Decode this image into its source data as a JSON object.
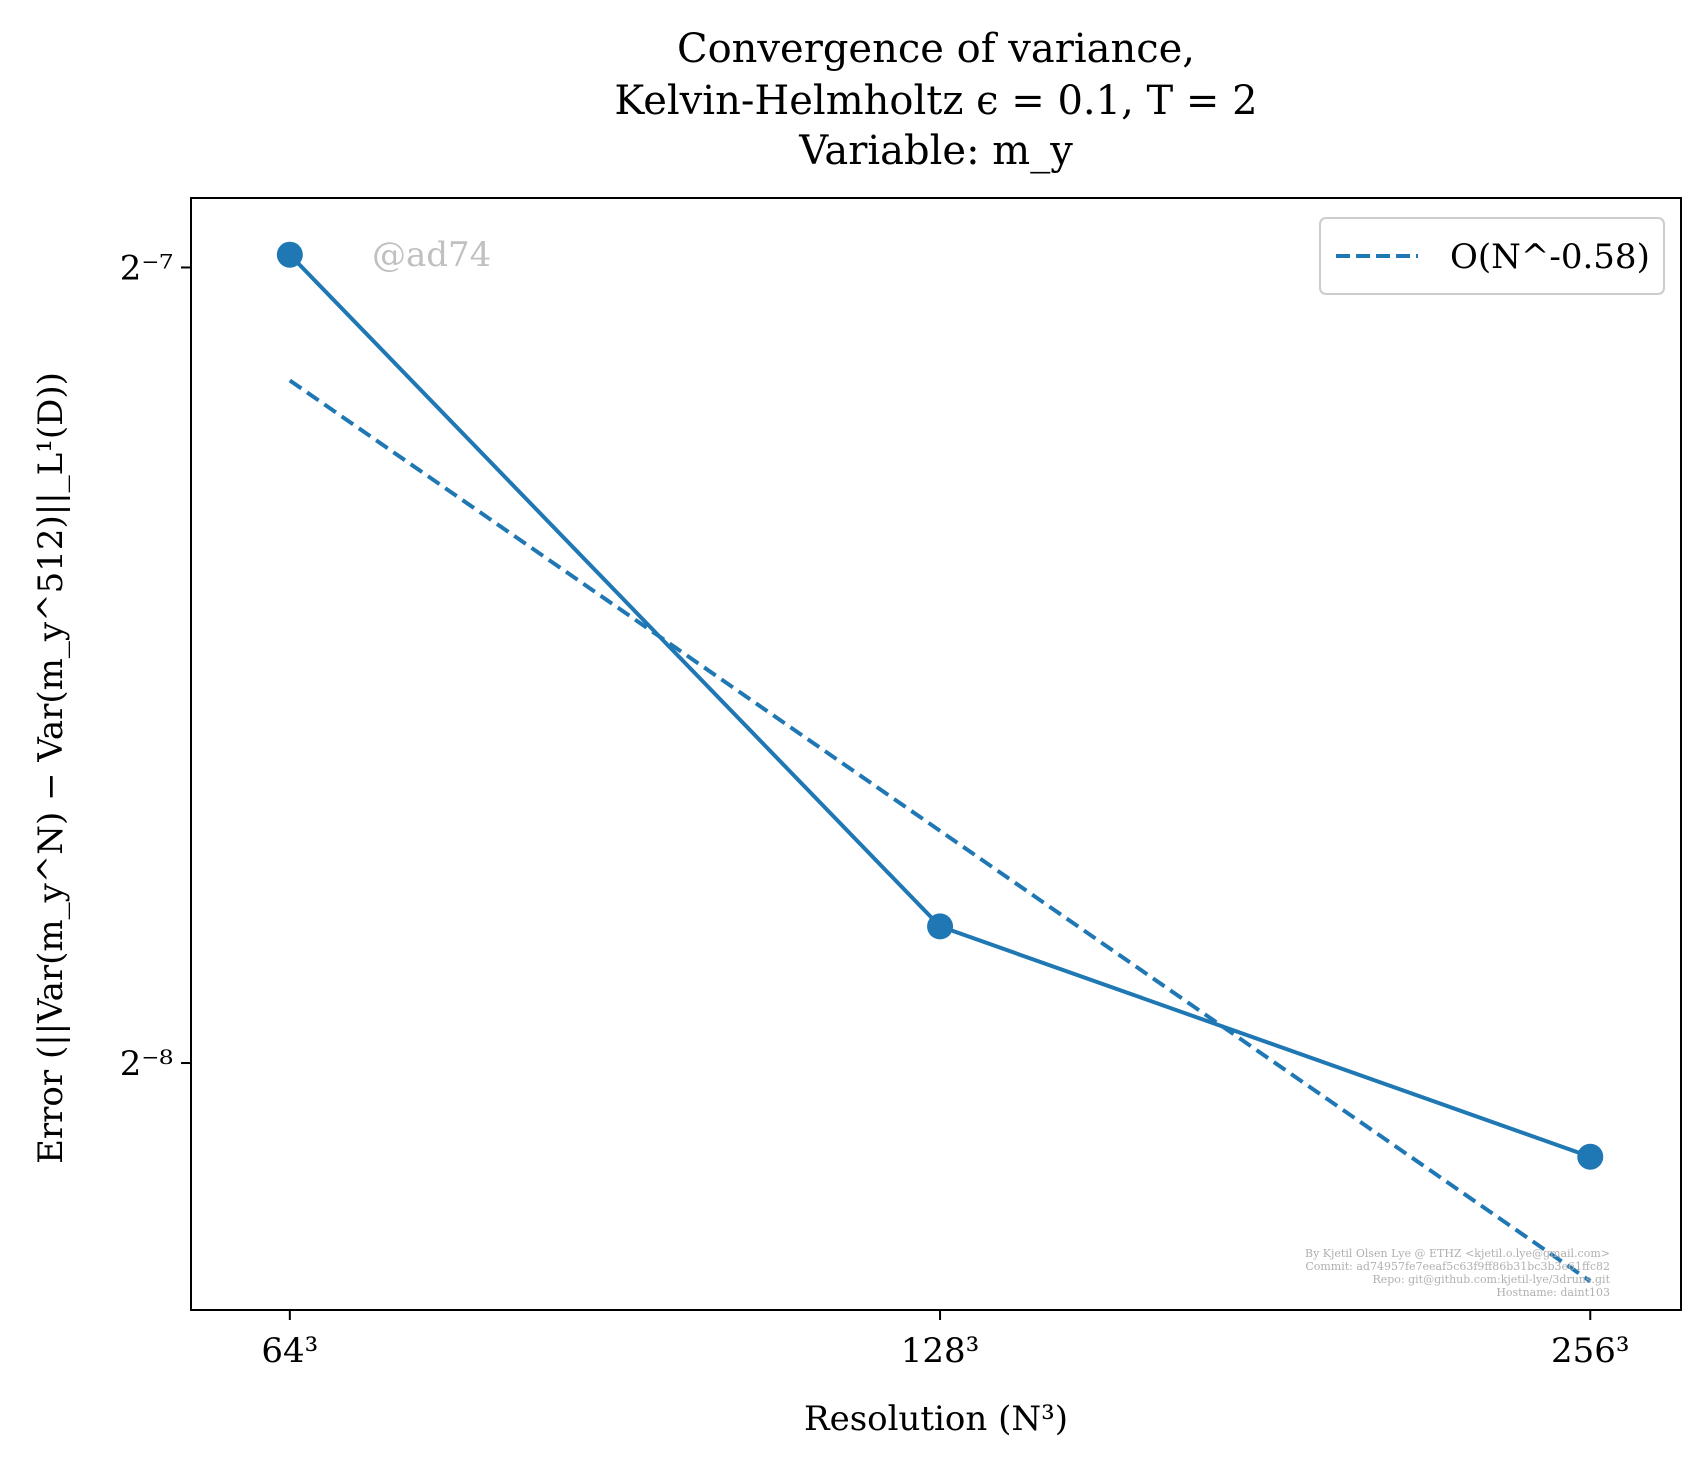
{
  "chart_data": {
    "type": "line",
    "title_lines": [
      "Convergence of variance,",
      "Kelvin-Helmholtz ϵ = 0.1, T = 2",
      "Variable: m_y"
    ],
    "xlabel": "Resolution (N³)",
    "ylabel": "Error (||Var(m_y^N) − Var(m_y^512)||_L¹(D))",
    "x_scale": "log2",
    "y_scale": "log2",
    "x_ticks": [
      64,
      128,
      256
    ],
    "x_tick_labels": [
      "64³",
      "128³",
      "256³"
    ],
    "y_ticks": [
      0.0078125,
      0.00390625
    ],
    "y_tick_labels": [
      "2⁻⁷",
      "2⁻⁸"
    ],
    "xlim": [
      57.6,
      282
    ],
    "ylim": [
      0.00315,
      0.0083
    ],
    "grid": false,
    "legend_position": "top-right",
    "series": [
      {
        "x": [
          64,
          128,
          256
        ],
        "values": [
          0.0079,
          0.0044,
          0.0036
        ],
        "style": "solid",
        "marker": "circle",
        "color": "#1f77b4"
      },
      {
        "name": "O(N^-0.58)",
        "x": [
          64,
          256
        ],
        "values": [
          0.00708,
          0.00323
        ],
        "style": "dashed",
        "marker": "none",
        "color": "#1f77b4"
      }
    ],
    "watermark": "@ad74",
    "footer_lines": [
      "By Kjetil Olsen Lye @ ETHZ <kjetil.o.lye@gmail.com>",
      "Commit: ad74957fe7eeaf5c63f9ff86b31bc3b3e61ffc82",
      "Repo: git@github.com:kjetil-lye/3druns.git",
      "Hostname: daint103"
    ]
  }
}
